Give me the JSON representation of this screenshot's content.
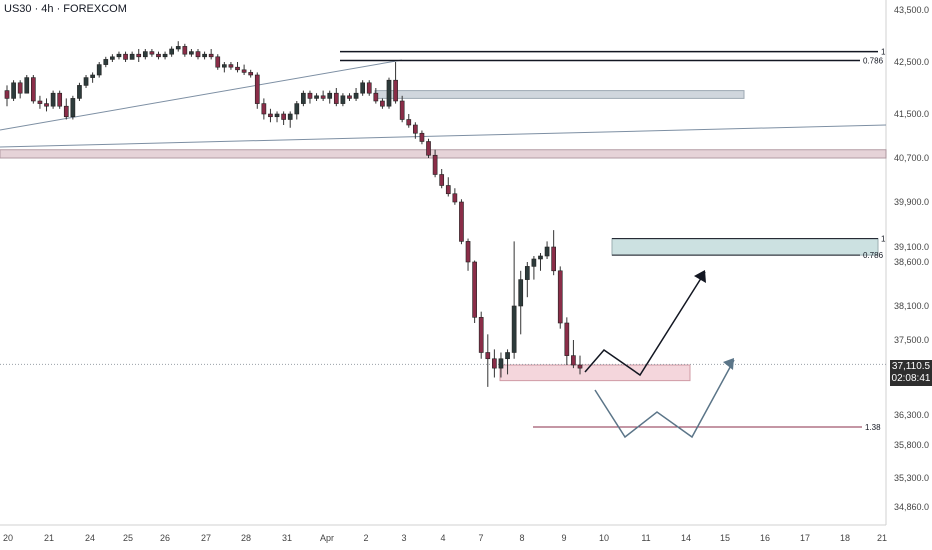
{
  "header": {
    "symbol_label": "US30 · 4h · FOREXCOM"
  },
  "price_tag": {
    "price": "37,110.5",
    "countdown": "02:08:41"
  },
  "colors": {
    "up": "#2d3b3b",
    "down": "#8a2d48",
    "wick": "#333333",
    "axis_text": "#444444",
    "grid_border": "#d0d0d0"
  },
  "chart_data": {
    "type": "candlestick",
    "instrument": "US30",
    "timeframe": "4h",
    "source": "FOREXCOM",
    "x_ticks": [
      "20",
      "21",
      "24",
      "25",
      "26",
      "27",
      "28",
      "31",
      "Apr",
      "2",
      "3",
      "4",
      "7",
      "8",
      "9",
      "10",
      "11",
      "14",
      "15",
      "16",
      "17",
      "18",
      "21"
    ],
    "y_ticks": [
      "43,500.0",
      "42,500.0",
      "41,500.0",
      "40,700.0",
      "39,900.0",
      "39,100.0",
      "38,600.0",
      "38,100.0",
      "37,500.0",
      "36,300.0",
      "35,800.0",
      "35,300.0",
      "34,860.0"
    ],
    "current_price": 37110.5,
    "candles": [
      [
        41950,
        42050,
        41650,
        41800
      ],
      [
        41800,
        42150,
        41750,
        42100
      ],
      [
        42100,
        42150,
        41800,
        41900
      ],
      [
        41900,
        42250,
        41900,
        42200
      ],
      [
        42200,
        42250,
        41700,
        41750
      ],
      [
        41750,
        41850,
        41600,
        41700
      ],
      [
        41700,
        41800,
        41550,
        41650
      ],
      [
        41650,
        41950,
        41600,
        41900
      ],
      [
        41900,
        41950,
        41600,
        41650
      ],
      [
        41650,
        41800,
        41400,
        41450
      ],
      [
        41450,
        41850,
        41400,
        41800
      ],
      [
        41800,
        42100,
        41750,
        42050
      ],
      [
        42050,
        42250,
        42000,
        42200
      ],
      [
        42200,
        42300,
        42100,
        42250
      ],
      [
        42250,
        42500,
        42200,
        42450
      ],
      [
        42450,
        42600,
        42400,
        42550
      ],
      [
        42550,
        42650,
        42500,
        42600
      ],
      [
        42600,
        42700,
        42550,
        42650
      ],
      [
        42650,
        42700,
        42500,
        42550
      ],
      [
        42550,
        42700,
        42550,
        42650
      ],
      [
        42650,
        42750,
        42500,
        42600
      ],
      [
        42600,
        42750,
        42550,
        42700
      ],
      [
        42700,
        42750,
        42600,
        42650
      ],
      [
        42650,
        42700,
        42550,
        42600
      ],
      [
        42600,
        42700,
        42550,
        42650
      ],
      [
        42650,
        42800,
        42600,
        42750
      ],
      [
        42750,
        42900,
        42700,
        42800
      ],
      [
        42800,
        42850,
        42600,
        42650
      ],
      [
        42650,
        42750,
        42600,
        42700
      ],
      [
        42700,
        42750,
        42550,
        42600
      ],
      [
        42600,
        42700,
        42550,
        42650
      ],
      [
        42650,
        42750,
        42550,
        42600
      ],
      [
        42600,
        42650,
        42350,
        42400
      ],
      [
        42400,
        42500,
        42300,
        42450
      ],
      [
        42450,
        42500,
        42350,
        42400
      ],
      [
        42400,
        42500,
        42300,
        42350
      ],
      [
        42350,
        42450,
        42250,
        42300
      ],
      [
        42300,
        42350,
        42200,
        42250
      ],
      [
        42250,
        42300,
        41600,
        41700
      ],
      [
        41700,
        41800,
        41400,
        41500
      ],
      [
        41500,
        41600,
        41350,
        41450
      ],
      [
        41450,
        41550,
        41350,
        41500
      ],
      [
        41500,
        41550,
        41300,
        41400
      ],
      [
        41400,
        41550,
        41250,
        41500
      ],
      [
        41500,
        41750,
        41400,
        41700
      ],
      [
        41700,
        41950,
        41650,
        41900
      ],
      [
        41900,
        41950,
        41700,
        41800
      ],
      [
        41800,
        41900,
        41750,
        41850
      ],
      [
        41850,
        41950,
        41750,
        41800
      ],
      [
        41800,
        41950,
        41700,
        41900
      ],
      [
        41900,
        42000,
        41650,
        41700
      ],
      [
        41700,
        41900,
        41650,
        41850
      ],
      [
        41850,
        41900,
        41750,
        41800
      ],
      [
        41800,
        42000,
        41750,
        41900
      ],
      [
        41900,
        42150,
        41850,
        42100
      ],
      [
        42100,
        42150,
        41850,
        41900
      ],
      [
        41900,
        42000,
        41700,
        41750
      ],
      [
        41750,
        41800,
        41600,
        41650
      ],
      [
        41650,
        42200,
        41600,
        42150
      ],
      [
        42150,
        42500,
        41700,
        41750
      ],
      [
        41750,
        41850,
        41350,
        41400
      ],
      [
        41400,
        41500,
        41250,
        41300
      ],
      [
        41300,
        41350,
        41050,
        41150
      ],
      [
        41150,
        41200,
        40950,
        41000
      ],
      [
        41000,
        41050,
        40700,
        40750
      ],
      [
        40750,
        40850,
        40350,
        40400
      ],
      [
        40400,
        40500,
        40150,
        40200
      ],
      [
        40200,
        40350,
        40000,
        40050
      ],
      [
        40050,
        40150,
        39850,
        39900
      ],
      [
        39900,
        39950,
        39150,
        39200
      ],
      [
        39200,
        39250,
        38500,
        38600
      ],
      [
        38600,
        38650,
        37800,
        37900
      ],
      [
        37900,
        38000,
        37200,
        37300
      ],
      [
        37300,
        37600,
        36750,
        37200
      ],
      [
        37200,
        37350,
        36900,
        37050
      ],
      [
        37050,
        37300,
        36900,
        37200
      ],
      [
        37200,
        37350,
        36950,
        37300
      ],
      [
        37300,
        39200,
        37200,
        38100
      ],
      [
        38100,
        38500,
        37600,
        38400
      ],
      [
        38400,
        38600,
        38200,
        38550
      ],
      [
        38550,
        38800,
        38400,
        38700
      ],
      [
        38700,
        38900,
        38500,
        38800
      ],
      [
        38800,
        39200,
        38700,
        39100
      ],
      [
        39100,
        39400,
        38450,
        38500
      ],
      [
        38500,
        38550,
        37700,
        37800
      ],
      [
        37800,
        37900,
        37100,
        37250
      ],
      [
        37250,
        37500,
        37050,
        37100
      ],
      [
        37100,
        37250,
        36950,
        37050
      ]
    ],
    "levels": [
      {
        "label": "1",
        "price": 42700
      },
      {
        "label": "0.786",
        "price": 42530
      },
      {
        "label": "1",
        "price": 39250
      },
      {
        "label": "0.786",
        "price": 38830
      },
      {
        "label": "1.38",
        "price": 36100
      }
    ],
    "zones": [
      {
        "color": "gray",
        "from": 41800,
        "to": 41950
      },
      {
        "color": "gray",
        "from": 40700,
        "to": 40850
      },
      {
        "color": "teal",
        "from": 38830,
        "to": 39250
      },
      {
        "color": "pink",
        "from": 36850,
        "to": 37100
      }
    ]
  }
}
